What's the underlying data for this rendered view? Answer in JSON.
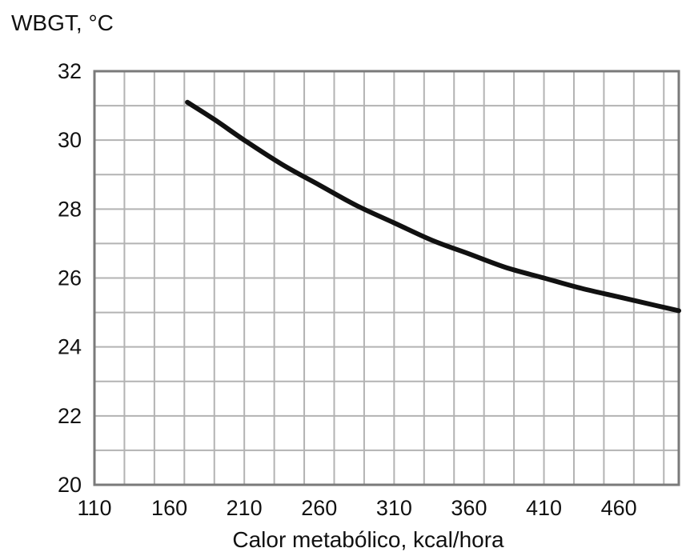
{
  "chart_data": {
    "type": "line",
    "ylabel": "WBGT, °C",
    "xlabel": "Calor metabólico, kcal/hora",
    "xlim": [
      110,
      500
    ],
    "ylim": [
      20,
      32
    ],
    "x_ticks": [
      "110",
      "160",
      "210",
      "260",
      "310",
      "360",
      "410",
      "460"
    ],
    "y_ticks": [
      "20",
      "22",
      "24",
      "26",
      "28",
      "30",
      "32"
    ],
    "grid": true,
    "series": [
      {
        "x": [
          172,
          190,
          210,
          235,
          260,
          285,
          310,
          335,
          360,
          385,
          410,
          435,
          460,
          485,
          500
        ],
        "y": [
          31.1,
          30.6,
          30.0,
          29.3,
          28.7,
          28.1,
          27.6,
          27.1,
          26.7,
          26.3,
          26.0,
          25.7,
          25.45,
          25.2,
          25.05
        ]
      }
    ],
    "colors": {
      "line": "#111111",
      "grid": "#b3b3b3",
      "frame": "#7a7a7a",
      "background": "#ffffff"
    }
  }
}
